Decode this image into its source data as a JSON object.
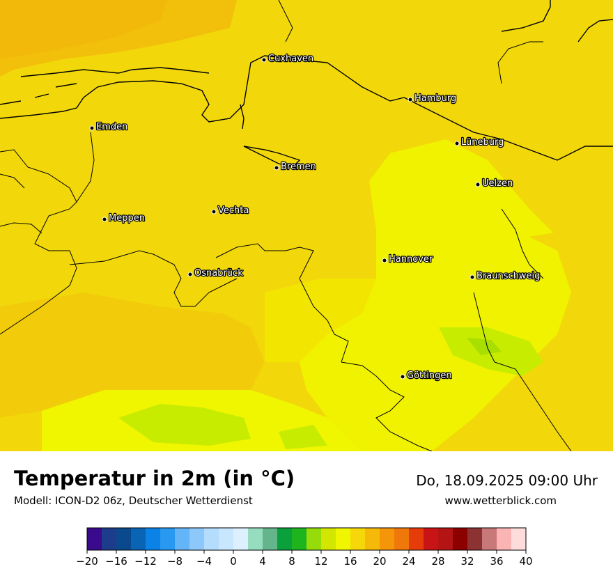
{
  "header": {
    "title": "Temperatur in 2m (in °C)",
    "model": "Modell: ICON-D2 06z, Deutscher Wetterdienst",
    "datetime": "Do, 18.09.2025 09:00 Uhr",
    "website": "www.wetterblick.com"
  },
  "cities": [
    {
      "name": "Cuxhaven"
    },
    {
      "name": "Hamburg"
    },
    {
      "name": "Emden"
    },
    {
      "name": "Lüneburg"
    },
    {
      "name": "Bremen"
    },
    {
      "name": "Uelzen"
    },
    {
      "name": "Vechta"
    },
    {
      "name": "Meppen"
    },
    {
      "name": "Hannover"
    },
    {
      "name": "Osnabrück"
    },
    {
      "name": "Braunschweig"
    },
    {
      "name": "Göttingen"
    }
  ],
  "colorbar": {
    "tick_labels": [
      "−20",
      "−16",
      "−12",
      "−8",
      "−4",
      "0",
      "4",
      "8",
      "12",
      "16",
      "20",
      "24",
      "28",
      "32",
      "36",
      "40"
    ],
    "colors": [
      "#3a0a8c",
      "#1e3c8c",
      "#0a4a8c",
      "#0a64b4",
      "#0a82e6",
      "#2898f0",
      "#64b4f8",
      "#8cc8fa",
      "#b4dcfc",
      "#c8e6fe",
      "#dcf0fe",
      "#96dcbe",
      "#64b48c",
      "#0aa03c",
      "#1eb41e",
      "#96dc0a",
      "#d2e600",
      "#f0f500",
      "#f5d70a",
      "#f5b90a",
      "#f5960a",
      "#f0780a",
      "#e63c0a",
      "#c81414",
      "#b41414",
      "#8c0000",
      "#8c3232",
      "#c87878",
      "#fab4b4",
      "#ffdcdc"
    ]
  },
  "map_fill_colors": {
    "base": "#f2d80a",
    "warm": "#f2c40a",
    "coast": "#f2b40a",
    "light": "#f5ec00",
    "mild": "#f0f500",
    "cool": "#c8ec00",
    "cooler": "#a8de00"
  }
}
